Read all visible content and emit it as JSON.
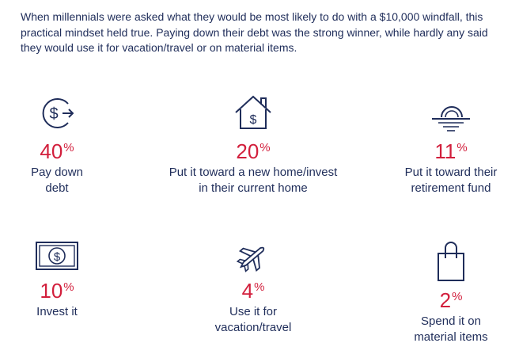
{
  "intro": "When millennials were asked what they would be most likely to do with a $10,000 windfall, this practical mindset held true. Paying down their debt was the strong winner, while hardly any said they would use it for vacation/travel or on material items.",
  "colors": {
    "accent": "#d21f3c",
    "navy": "#1f2d5a"
  },
  "stats": [
    {
      "icon": "dollar-arrow-icon",
      "value": "40",
      "unit": "%",
      "label_lines": [
        "Pay down",
        "debt"
      ]
    },
    {
      "icon": "house-dollar-icon",
      "value": "20",
      "unit": "%",
      "label_lines": [
        "Put it toward a new home/invest",
        "in their current home"
      ]
    },
    {
      "icon": "sunset-icon",
      "value": "11",
      "unit": "%",
      "label_lines": [
        "Put it toward their",
        "retirement fund"
      ]
    },
    {
      "icon": "dollar-bill-icon",
      "value": "10",
      "unit": "%",
      "label_lines": [
        "Invest it"
      ]
    },
    {
      "icon": "airplane-icon",
      "value": "4",
      "unit": "%",
      "label_lines": [
        "Use it for",
        "vacation/travel"
      ]
    },
    {
      "icon": "shopping-bag-icon",
      "value": "2",
      "unit": "%",
      "label_lines": [
        "Spend it on",
        "material items"
      ]
    }
  ]
}
